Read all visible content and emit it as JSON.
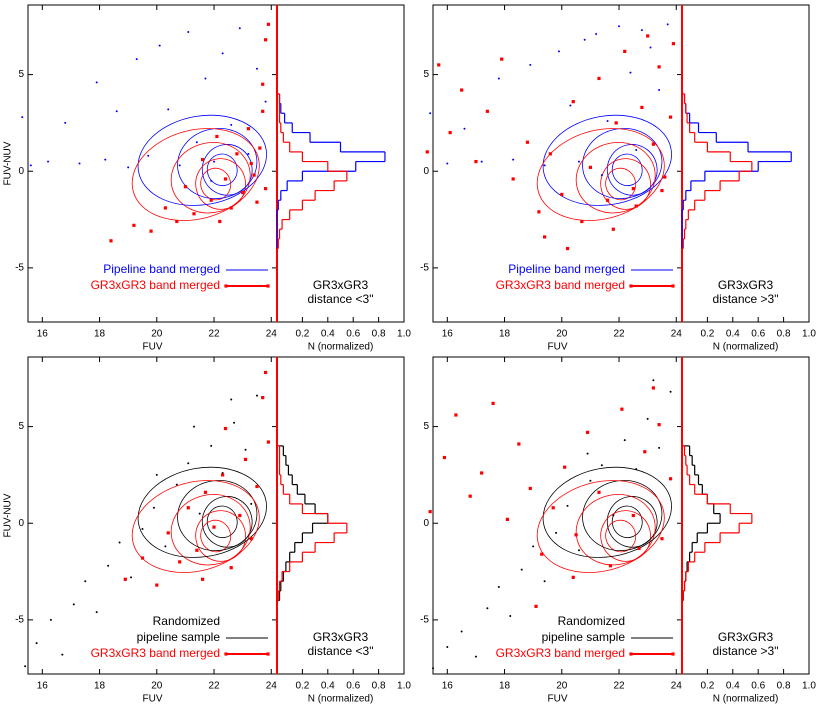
{
  "chart_data": [
    {
      "type": "scatter",
      "ylabel": "FUV-NUV",
      "xlabel": "FUV",
      "xlim": [
        15.5,
        24.2
      ],
      "xticks": [
        16,
        18,
        20,
        22,
        24
      ],
      "ylim": [
        -7.8,
        8.6
      ],
      "yticks": [
        -5,
        0,
        5
      ],
      "series": [
        {
          "name": [
            "Pipeline band merged"
          ],
          "color": "#0000ff",
          "marker": "dot",
          "x": [
            15.3,
            15.6,
            16.2,
            16.8,
            17.3,
            17.9,
            18.2,
            18.6,
            19.0,
            19.3,
            19.7,
            20.1,
            20.4,
            20.8,
            21.1,
            21.4,
            21.7,
            22.0,
            22.3,
            22.6,
            22.9,
            23.2,
            23.5,
            23.8,
            21.9
          ],
          "y": [
            2.8,
            0.3,
            0.5,
            2.5,
            0.4,
            4.6,
            0.6,
            3.1,
            0.2,
            5.8,
            0.8,
            6.5,
            3.2,
            0.3,
            7.2,
            1.5,
            4.8,
            0.5,
            6.1,
            2.4,
            7.4,
            0.9,
            5.3,
            3.6,
            -0.5
          ]
        },
        {
          "name": [
            "GR3xGR3 band merged"
          ],
          "color": "#ff0000",
          "marker": "square",
          "x": [
            18.4,
            19.2,
            19.8,
            20.3,
            20.7,
            21.0,
            21.3,
            21.6,
            21.9,
            22.1,
            22.4,
            22.6,
            22.8,
            23.0,
            23.2,
            23.4,
            23.5,
            23.6,
            23.7,
            23.8,
            23.9,
            23.7,
            23.8,
            23.3,
            22.2
          ],
          "y": [
            -3.6,
            -2.8,
            -3.1,
            -1.9,
            -2.6,
            -0.8,
            -2.2,
            0.6,
            -1.5,
            1.8,
            -0.4,
            -1.9,
            0.9,
            -1.1,
            2.2,
            -0.2,
            -1.6,
            1.2,
            4.5,
            6.8,
            7.6,
            3.1,
            -0.9,
            0.4,
            -2.6
          ]
        }
      ],
      "histogram": {
        "xlabel": "N (normalized)",
        "xlim": [
          0,
          1.0
        ],
        "xticks": [
          0.2,
          0.4,
          0.6,
          0.8,
          {
            "value": 1.0,
            "label": "1.0"
          }
        ],
        "bins": [
          -4,
          -3.5,
          -3,
          -2.5,
          -2,
          -1.5,
          -1,
          -0.5,
          0,
          0.5,
          1,
          1.5,
          2,
          2.5,
          3,
          3.5,
          4
        ],
        "series": [
          {
            "color": "#0000ff",
            "values": [
              0,
              0,
              0,
              0,
              0.01,
              0.03,
              0.08,
              0.2,
              0.62,
              0.85,
              0.5,
              0.26,
              0.12,
              0.06,
              0.03,
              0.02
            ]
          },
          {
            "color": "#ff0000",
            "values": [
              0.01,
              0.02,
              0.04,
              0.1,
              0.2,
              0.3,
              0.45,
              0.55,
              0.4,
              0.2,
              0.1,
              0.05,
              0.03,
              0.02,
              0.02,
              0.02
            ]
          }
        ]
      },
      "annotation": [
        "GR3xGR3",
        "distance <3\""
      ]
    },
    {
      "type": "scatter",
      "xlabel": "FUV",
      "xlim": [
        15.5,
        24.2
      ],
      "xticks": [
        16,
        18,
        20,
        22,
        24
      ],
      "ylim": [
        -7.8,
        8.6
      ],
      "yticks": [
        -5,
        0,
        5
      ],
      "series": [
        {
          "name": [
            "Pipeline band merged"
          ],
          "color": "#0000ff",
          "marker": "dot",
          "x": [
            15.4,
            16.0,
            16.6,
            17.2,
            17.8,
            18.3,
            18.9,
            19.4,
            19.9,
            20.3,
            20.8,
            21.2,
            21.6,
            22.0,
            22.4,
            22.8,
            23.1,
            23.4,
            23.7,
            21.4,
            20.6,
            22.6
          ],
          "y": [
            3.0,
            0.4,
            2.2,
            0.5,
            4.8,
            0.6,
            5.5,
            0.3,
            6.2,
            3.4,
            6.8,
            7.1,
            2.6,
            7.5,
            5.1,
            7.3,
            6.4,
            4.2,
            7.6,
            -0.2,
            0.5,
            1.1
          ]
        },
        {
          "name": [
            "GR3xGR3 band merged"
          ],
          "color": "#ff0000",
          "marker": "square",
          "x": [
            15.3,
            15.7,
            16.1,
            16.5,
            17.0,
            17.4,
            17.9,
            18.3,
            18.8,
            19.2,
            19.6,
            20.0,
            20.4,
            20.7,
            21.0,
            21.3,
            21.6,
            21.9,
            22.2,
            22.5,
            22.8,
            23.0,
            23.2,
            23.4,
            23.6,
            23.8,
            23.9,
            21.8,
            22.6,
            23.5,
            20.2,
            19.4
          ],
          "y": [
            1.0,
            5.5,
            2.0,
            4.2,
            0.5,
            3.1,
            5.8,
            -0.4,
            1.5,
            -2.1,
            0.9,
            -1.2,
            3.6,
            -2.6,
            0.2,
            4.8,
            -1.5,
            2.5,
            6.2,
            -0.9,
            3.3,
            7.0,
            1.4,
            5.4,
            -0.3,
            2.8,
            6.6,
            -3.0,
            -1.8,
            -1.0,
            -4.0,
            -3.4
          ]
        }
      ],
      "histogram": {
        "xlabel": "N (normalized)",
        "xlim": [
          0,
          1.0
        ],
        "xticks": [
          0.2,
          0.4,
          0.6,
          0.8,
          {
            "value": 1.0,
            "label": "1.0"
          }
        ],
        "bins": [
          -4,
          -3.5,
          -3,
          -2.5,
          -2,
          -1.5,
          -1,
          -0.5,
          0,
          0.5,
          1,
          1.5,
          2,
          2.5,
          3,
          3.5,
          4
        ],
        "series": [
          {
            "color": "#0000ff",
            "values": [
              0,
              0,
              0,
              0,
              0.01,
              0.03,
              0.07,
              0.18,
              0.6,
              0.86,
              0.52,
              0.27,
              0.13,
              0.06,
              0.03,
              0.02
            ]
          },
          {
            "color": "#ff0000",
            "values": [
              0.01,
              0.02,
              0.03,
              0.05,
              0.1,
              0.18,
              0.3,
              0.45,
              0.55,
              0.38,
              0.2,
              0.1,
              0.06,
              0.04,
              0.03,
              0.02
            ]
          }
        ]
      },
      "annotation": [
        "GR3xGR3",
        "distance >3\""
      ]
    },
    {
      "type": "scatter",
      "ylabel": "FUV-NUV",
      "xlabel": "FUV",
      "xlim": [
        15.5,
        24.2
      ],
      "xticks": [
        16,
        18,
        20,
        22,
        24
      ],
      "ylim": [
        -7.8,
        8.6
      ],
      "yticks": [
        -5,
        0,
        5
      ],
      "series": [
        {
          "name": [
            "Randomized",
            "pipeline sample"
          ],
          "color": "#000000",
          "marker": "dot",
          "x": [
            15.4,
            15.8,
            16.3,
            16.7,
            17.1,
            17.5,
            17.9,
            18.3,
            18.7,
            19.1,
            19.5,
            19.9,
            20.3,
            20.7,
            21.1,
            21.5,
            21.9,
            22.3,
            22.7,
            23.1,
            23.5,
            23.8,
            20.0,
            21.3,
            22.6,
            23.3
          ],
          "y": [
            -7.4,
            -6.2,
            -5.0,
            -6.8,
            -4.2,
            -3.0,
            -4.6,
            -2.2,
            -1.0,
            -2.8,
            -0.3,
            0.8,
            -1.2,
            2.0,
            3.1,
            0.5,
            4.0,
            2.6,
            5.2,
            3.8,
            6.6,
            7.8,
            2.5,
            5.0,
            6.4,
            1.0
          ]
        },
        {
          "name": [
            "GR3xGR3 band merged"
          ],
          "color": "#ff0000",
          "marker": "square",
          "x": [
            18.9,
            19.5,
            20.0,
            20.4,
            20.8,
            21.1,
            21.4,
            21.7,
            22.0,
            22.3,
            22.6,
            22.9,
            23.1,
            23.3,
            23.5,
            23.7,
            23.8,
            23.9,
            22.4,
            21.6
          ],
          "y": [
            -2.9,
            -1.8,
            -3.2,
            -0.5,
            -2.0,
            0.8,
            -1.4,
            1.6,
            -0.2,
            2.5,
            -2.3,
            0.4,
            3.3,
            -0.8,
            1.9,
            6.5,
            7.8,
            4.2,
            4.9,
            -2.9
          ]
        }
      ],
      "histogram": {
        "xlabel": "N (normalized)",
        "xlim": [
          0,
          1.0
        ],
        "xticks": [
          0.2,
          0.4,
          0.6,
          0.8,
          {
            "value": 1.0,
            "label": "1.0"
          }
        ],
        "bins": [
          -4,
          -3.5,
          -3,
          -2.5,
          -2,
          -1.5,
          -1,
          -0.5,
          0,
          0.5,
          1,
          1.5,
          2,
          2.5,
          3,
          3.5,
          4
        ],
        "series": [
          {
            "color": "#000000",
            "values": [
              0.02,
              0.03,
              0.05,
              0.07,
              0.1,
              0.14,
              0.2,
              0.28,
              0.4,
              0.3,
              0.22,
              0.16,
              0.12,
              0.09,
              0.07,
              0.05
            ]
          },
          {
            "color": "#ff0000",
            "values": [
              0.01,
              0.02,
              0.04,
              0.1,
              0.2,
              0.3,
              0.45,
              0.55,
              0.4,
              0.2,
              0.1,
              0.05,
              0.03,
              0.02,
              0.02,
              0.02
            ]
          }
        ]
      },
      "annotation": [
        "GR3xGR3",
        "distance <3\""
      ]
    },
    {
      "type": "scatter",
      "xlabel": "FUV",
      "xlim": [
        15.5,
        24.2
      ],
      "xticks": [
        16,
        18,
        20,
        22,
        24
      ],
      "ylim": [
        -7.8,
        8.6
      ],
      "yticks": [
        -5,
        0,
        5
      ],
      "series": [
        {
          "name": [
            "Randomized",
            "pipeline sample"
          ],
          "color": "#000000",
          "marker": "dot",
          "x": [
            15.5,
            16.0,
            16.5,
            17.0,
            17.4,
            17.8,
            18.2,
            18.6,
            19.0,
            19.4,
            19.8,
            20.2,
            20.6,
            21.0,
            21.4,
            21.8,
            22.2,
            22.6,
            23.0,
            23.4,
            23.8,
            20.9,
            22.1,
            23.2
          ],
          "y": [
            -7.5,
            -6.4,
            -5.6,
            -6.9,
            -4.4,
            -3.3,
            -4.8,
            -2.4,
            -1.2,
            -3.0,
            -0.5,
            0.9,
            -1.4,
            2.2,
            3.0,
            0.4,
            4.3,
            2.8,
            5.4,
            3.9,
            6.8,
            3.6,
            5.9,
            7.4
          ]
        },
        {
          "name": [
            "GR3xGR3 band merged"
          ],
          "color": "#ff0000",
          "marker": "square",
          "x": [
            15.4,
            15.9,
            16.3,
            16.8,
            17.2,
            17.6,
            18.1,
            18.5,
            18.9,
            19.3,
            19.7,
            20.1,
            20.5,
            20.9,
            21.3,
            21.7,
            22.1,
            22.5,
            22.9,
            23.2,
            23.5,
            23.8,
            19.1,
            20.4,
            22.7,
            23.4
          ],
          "y": [
            0.6,
            3.4,
            5.6,
            1.4,
            2.6,
            6.2,
            0.2,
            4.1,
            1.8,
            -1.6,
            0.8,
            2.9,
            -0.6,
            4.7,
            1.6,
            -2.2,
            5.9,
            0.4,
            3.7,
            7.0,
            -0.8,
            2.3,
            -4.3,
            -2.8,
            -1.3,
            5.1
          ]
        }
      ],
      "histogram": {
        "xlabel": "N (normalized)",
        "xlim": [
          0,
          1.0
        ],
        "xticks": [
          0.2,
          0.4,
          0.6,
          0.8,
          {
            "value": 1.0,
            "label": "1.0"
          }
        ],
        "bins": [
          -4,
          -3.5,
          -3,
          -2.5,
          -2,
          -1.5,
          -1,
          -0.5,
          0,
          0.5,
          1,
          1.5,
          2,
          2.5,
          3,
          3.5,
          4
        ],
        "series": [
          {
            "color": "#000000",
            "values": [
              0.01,
              0.02,
              0.03,
              0.04,
              0.06,
              0.08,
              0.12,
              0.2,
              0.3,
              0.25,
              0.2,
              0.16,
              0.13,
              0.1,
              0.08,
              0.06
            ]
          },
          {
            "color": "#ff0000",
            "values": [
              0.01,
              0.02,
              0.03,
              0.05,
              0.1,
              0.18,
              0.3,
              0.45,
              0.55,
              0.38,
              0.2,
              0.1,
              0.06,
              0.04,
              0.03,
              0.02
            ]
          }
        ]
      },
      "annotation": [
        "GR3xGR3",
        "distance >3\""
      ]
    }
  ]
}
